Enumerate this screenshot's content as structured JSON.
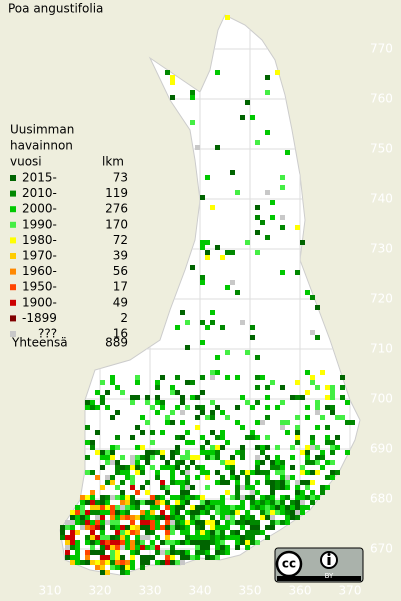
{
  "map": {
    "title": "Poa angustifolia",
    "legend": {
      "title": [
        "Uusimman",
        "havainnon",
        "vuosi"
      ],
      "count_header": "lkm",
      "entries": [
        {
          "label": "2015-",
          "count": 73,
          "color": "#006400"
        },
        {
          "label": "2010-",
          "count": 119,
          "color": "#008800"
        },
        {
          "label": "2000-",
          "count": 276,
          "color": "#00c800"
        },
        {
          "label": "1990-",
          "count": 170,
          "color": "#44ee44"
        },
        {
          "label": "1980-",
          "count": 72,
          "color": "#ffff00"
        },
        {
          "label": "1970-",
          "count": 39,
          "color": "#ffcc00"
        },
        {
          "label": "1960-",
          "count": 56,
          "color": "#ff8800"
        },
        {
          "label": "1950-",
          "count": 17,
          "color": "#ff4400"
        },
        {
          "label": "1900-",
          "count": 49,
          "color": "#cc0000"
        },
        {
          "label": "-1899",
          "count": 2,
          "color": "#800000"
        },
        {
          "label": "???",
          "count": 16,
          "color": "#c8c8c8"
        }
      ],
      "total_label": "Yhteensä",
      "total": 889
    },
    "yticks": [
      670,
      680,
      690,
      700,
      710,
      720,
      730,
      740,
      750,
      760,
      770
    ],
    "xticks": [
      310,
      320,
      330,
      340,
      350,
      360,
      370
    ]
  },
  "license": {
    "badge": "cc",
    "by": "BY"
  }
}
